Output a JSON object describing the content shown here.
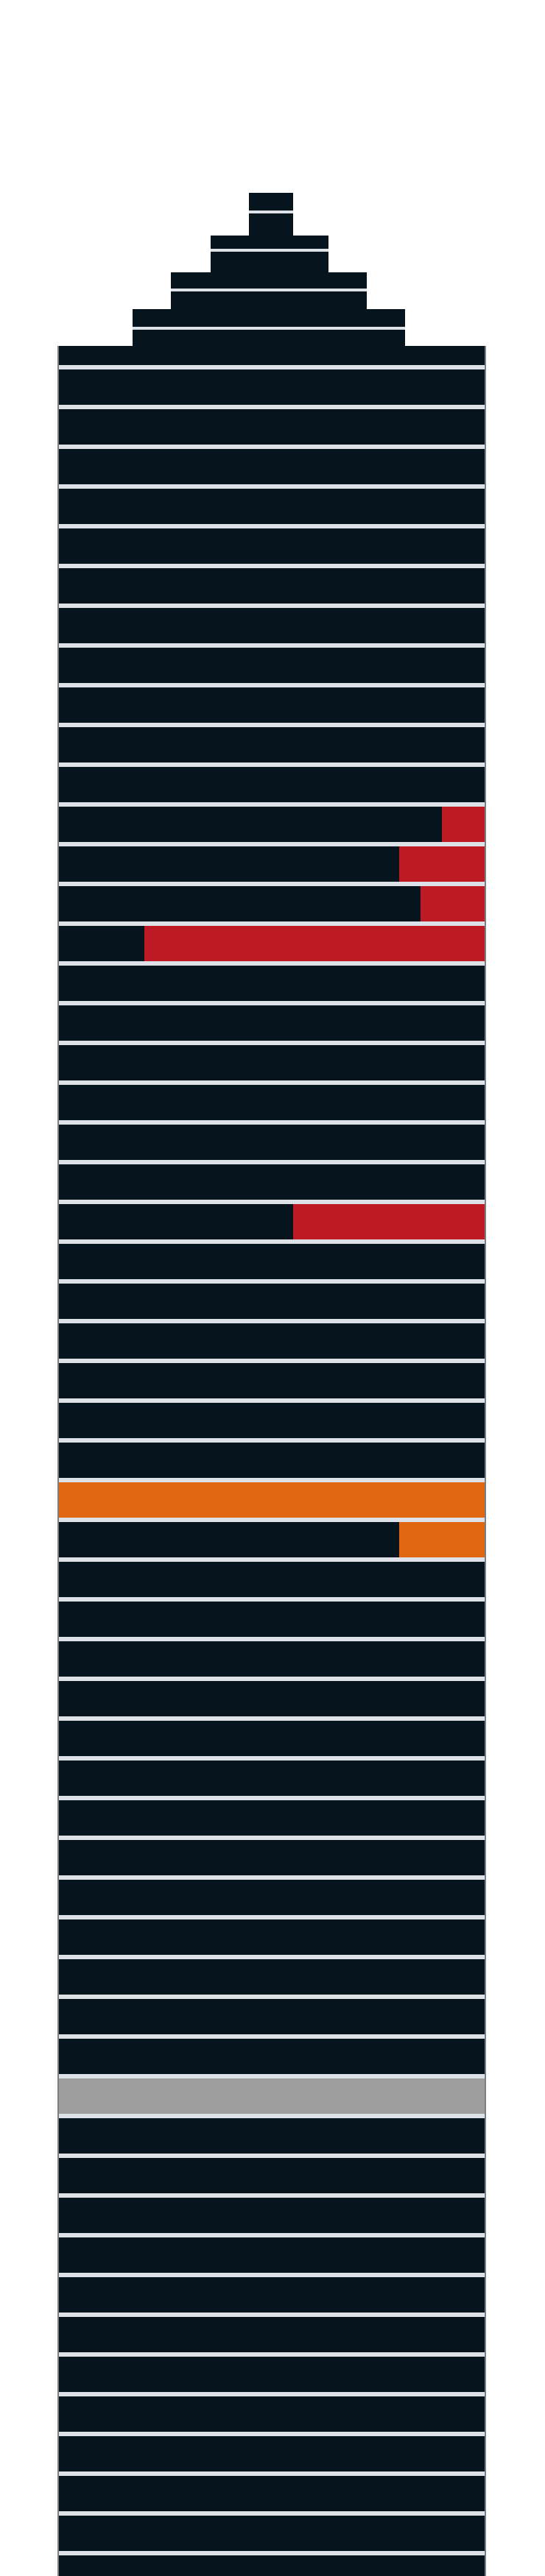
{
  "colors": {
    "background": "#ffffff",
    "floor": "#06141d",
    "separator": "#dde2e8",
    "red": "#be1a25",
    "orange": "#e0660f",
    "gray": "#9e9e9e",
    "shaft_edge": "#7a7f85"
  },
  "crown_tiers": 4,
  "floors": [
    {
      "kind": "dark"
    },
    {
      "kind": "dark"
    },
    {
      "kind": "dark"
    },
    {
      "kind": "dark"
    },
    {
      "kind": "dark"
    },
    {
      "kind": "dark"
    },
    {
      "kind": "dark"
    },
    {
      "kind": "dark"
    },
    {
      "kind": "dark"
    },
    {
      "kind": "dark"
    },
    {
      "kind": "dark"
    },
    {
      "kind": "partial",
      "color": "red",
      "fraction": 0.1
    },
    {
      "kind": "partial",
      "color": "red",
      "fraction": 0.2
    },
    {
      "kind": "partial",
      "color": "red",
      "fraction": 0.15
    },
    {
      "kind": "partial",
      "color": "red",
      "fraction": 0.8
    },
    {
      "kind": "dark"
    },
    {
      "kind": "dark"
    },
    {
      "kind": "dark"
    },
    {
      "kind": "dark"
    },
    {
      "kind": "dark"
    },
    {
      "kind": "dark"
    },
    {
      "kind": "partial",
      "color": "red",
      "fraction": 0.45
    },
    {
      "kind": "dark"
    },
    {
      "kind": "dark"
    },
    {
      "kind": "dark"
    },
    {
      "kind": "dark"
    },
    {
      "kind": "dark"
    },
    {
      "kind": "dark"
    },
    {
      "kind": "full",
      "color": "orange"
    },
    {
      "kind": "partial",
      "color": "orange",
      "fraction": 0.2
    },
    {
      "kind": "dark"
    },
    {
      "kind": "dark"
    },
    {
      "kind": "dark"
    },
    {
      "kind": "dark"
    },
    {
      "kind": "dark"
    },
    {
      "kind": "dark"
    },
    {
      "kind": "dark"
    },
    {
      "kind": "dark"
    },
    {
      "kind": "dark"
    },
    {
      "kind": "dark"
    },
    {
      "kind": "dark"
    },
    {
      "kind": "dark"
    },
    {
      "kind": "dark"
    },
    {
      "kind": "full",
      "color": "gray"
    },
    {
      "kind": "dark"
    },
    {
      "kind": "dark"
    },
    {
      "kind": "dark"
    },
    {
      "kind": "dark"
    },
    {
      "kind": "dark"
    },
    {
      "kind": "dark"
    },
    {
      "kind": "dark"
    },
    {
      "kind": "dark"
    },
    {
      "kind": "dark"
    },
    {
      "kind": "dark"
    },
    {
      "kind": "dark"
    },
    {
      "kind": "dark"
    },
    {
      "kind": "dark"
    }
  ]
}
